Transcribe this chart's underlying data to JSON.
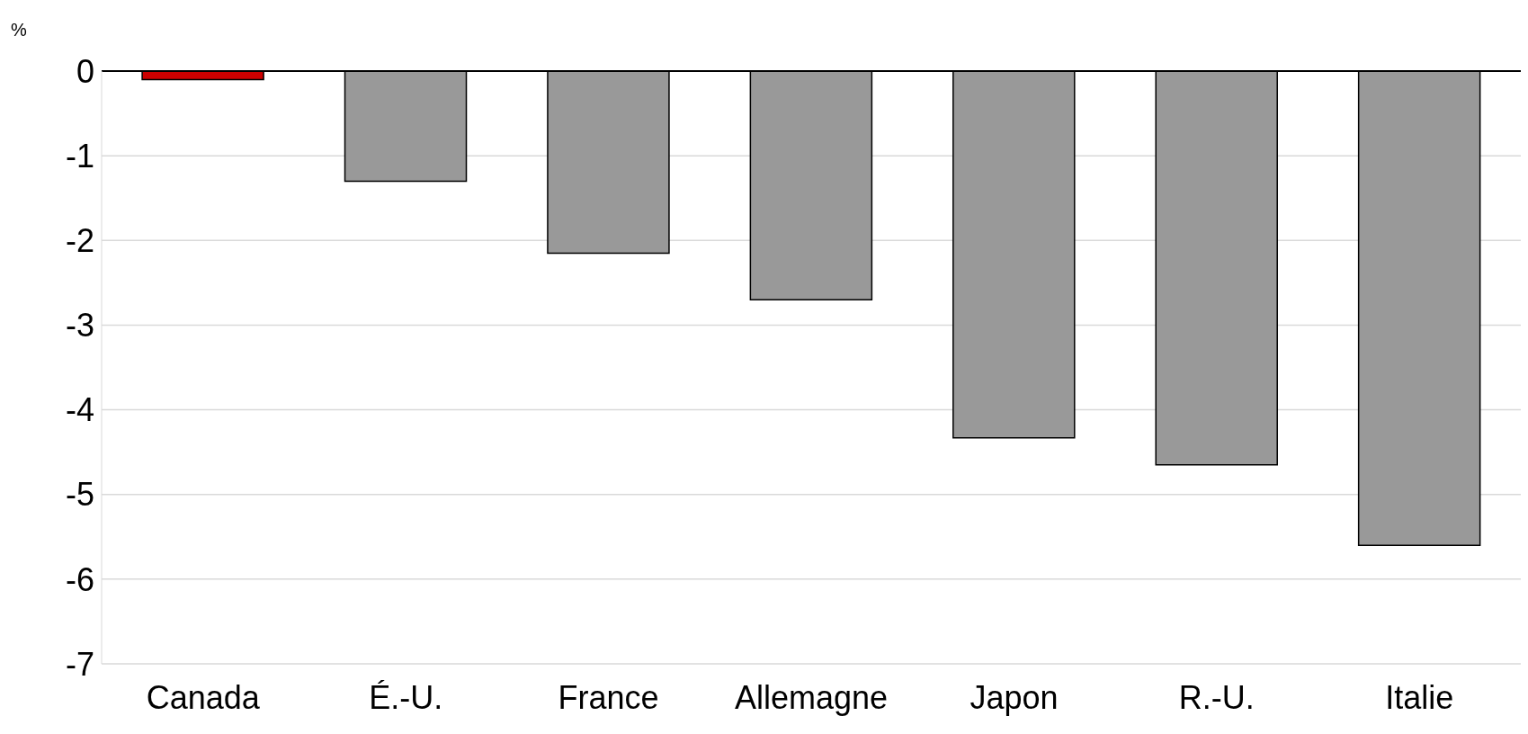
{
  "chart_data": {
    "type": "bar",
    "ylabel": "%",
    "categories": [
      "Canada",
      "É.-U.",
      "France",
      "Allemagne",
      "Japon",
      "R.-U.",
      "Italie"
    ],
    "values": [
      -0.1,
      -1.3,
      -2.15,
      -2.7,
      -4.33,
      -4.65,
      -5.6
    ],
    "colors": [
      "#cc0000",
      "#999999",
      "#999999",
      "#999999",
      "#999999",
      "#999999",
      "#999999"
    ],
    "ylim": [
      -7,
      0
    ],
    "yticks": [
      0,
      -1,
      -2,
      -3,
      -4,
      -5,
      -6,
      -7
    ],
    "grid": "y"
  }
}
